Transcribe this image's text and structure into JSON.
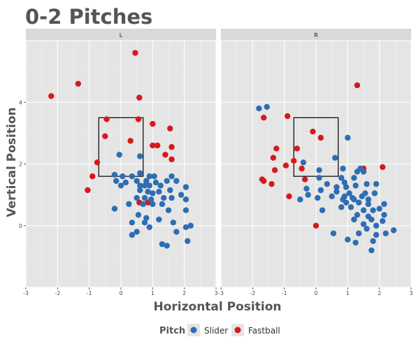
{
  "title": "0-2 Pitches",
  "chart_data": {
    "type": "scatter",
    "title": "0-2 Pitches",
    "xlabel": "Horizontal Position",
    "ylabel": "Vertical Position",
    "xlim": [
      -3,
      3
    ],
    "ylim": [
      -2,
      6
    ],
    "x_ticks": [
      "-3",
      "-2",
      "-1",
      "0",
      "1",
      "2",
      "3"
    ],
    "y_ticks": [
      "0",
      "2",
      "4"
    ],
    "grid": true,
    "legend": {
      "title": "Pitch",
      "position": "bottom",
      "entries": [
        "Slider",
        "Fastball"
      ]
    },
    "strike_zone": {
      "x": [
        -0.7,
        0.7
      ],
      "y": [
        1.6,
        3.5
      ]
    },
    "colors": {
      "Slider": "#2e6db4",
      "Fastball": "#d7191c",
      "panel": "#e5e5e5",
      "strip": "#d9d9d9",
      "grid": "#ffffff"
    },
    "panels": [
      {
        "label": "L",
        "series": [
          {
            "name": "Fastball",
            "points": [
              [
                -2.2,
                4.2
              ],
              [
                -1.35,
                4.6
              ],
              [
                0.45,
                5.6
              ],
              [
                0.58,
                4.15
              ],
              [
                -0.45,
                3.45
              ],
              [
                0.55,
                3.45
              ],
              [
                -0.5,
                2.9
              ],
              [
                0.3,
                2.75
              ],
              [
                1.0,
                3.3
              ],
              [
                1.55,
                3.15
              ],
              [
                1.0,
                2.6
              ],
              [
                1.15,
                2.6
              ],
              [
                1.6,
                2.55
              ],
              [
                1.4,
                2.3
              ],
              [
                1.6,
                2.15
              ],
              [
                -0.75,
                2.05
              ],
              [
                -0.9,
                1.6
              ],
              [
                -1.05,
                1.15
              ],
              [
                0.58,
                0.75
              ],
              [
                0.85,
                0.75
              ]
            ]
          },
          {
            "name": "Slider",
            "points": [
              [
                -0.05,
                2.3
              ],
              [
                0.6,
                2.25
              ],
              [
                -0.2,
                1.65
              ],
              [
                0.05,
                1.6
              ],
              [
                0.35,
                1.6
              ],
              [
                0.6,
                1.7
              ],
              [
                0.9,
                1.6
              ],
              [
                1.05,
                1.6
              ],
              [
                1.6,
                1.6
              ],
              [
                -0.15,
                1.45
              ],
              [
                0.15,
                1.4
              ],
              [
                0.5,
                1.45
              ],
              [
                0.8,
                1.45
              ],
              [
                1.1,
                1.4
              ],
              [
                1.45,
                1.45
              ],
              [
                1.75,
                1.45
              ],
              [
                0.0,
                1.3
              ],
              [
                0.6,
                1.3
              ],
              [
                0.75,
                1.3
              ],
              [
                0.9,
                1.3
              ],
              [
                1.25,
                1.3
              ],
              [
                2.05,
                1.25
              ],
              [
                0.6,
                1.15
              ],
              [
                0.85,
                1.1
              ],
              [
                1.0,
                1.05
              ],
              [
                1.2,
                1.1
              ],
              [
                1.55,
                1.15
              ],
              [
                1.9,
                1.0
              ],
              [
                0.5,
                0.9
              ],
              [
                0.75,
                0.9
              ],
              [
                0.95,
                0.85
              ],
              [
                1.35,
                0.9
              ],
              [
                1.6,
                0.9
              ],
              [
                2.05,
                0.85
              ],
              [
                0.25,
                0.7
              ],
              [
                0.7,
                0.7
              ],
              [
                1.0,
                0.7
              ],
              [
                1.3,
                0.7
              ],
              [
                -0.2,
                0.55
              ],
              [
                2.05,
                0.5
              ],
              [
                1.5,
                0.5
              ],
              [
                0.55,
                0.35
              ],
              [
                0.8,
                0.25
              ],
              [
                1.2,
                0.2
              ],
              [
                0.35,
                0.1
              ],
              [
                0.75,
                0.1
              ],
              [
                1.65,
                0.1
              ],
              [
                0.9,
                -0.05
              ],
              [
                2.05,
                -0.05
              ],
              [
                2.2,
                0.0
              ],
              [
                0.5,
                -0.2
              ],
              [
                1.75,
                -0.2
              ],
              [
                0.35,
                -0.3
              ],
              [
                1.3,
                -0.6
              ],
              [
                1.45,
                -0.65
              ],
              [
                2.1,
                -0.5
              ]
            ]
          }
        ]
      },
      {
        "label": "R",
        "series": [
          {
            "name": "Fastball",
            "points": [
              [
                1.3,
                4.55
              ],
              [
                -1.65,
                3.5
              ],
              [
                -0.9,
                3.55
              ],
              [
                -0.1,
                3.05
              ],
              [
                0.15,
                2.85
              ],
              [
                -0.6,
                2.5
              ],
              [
                -1.25,
                2.5
              ],
              [
                -1.35,
                2.2
              ],
              [
                -0.7,
                2.1
              ],
              [
                -0.95,
                1.95
              ],
              [
                -1.3,
                1.8
              ],
              [
                -0.45,
                1.85
              ],
              [
                1.5,
                1.85
              ],
              [
                2.1,
                1.9
              ],
              [
                -1.7,
                1.5
              ],
              [
                -1.65,
                1.45
              ],
              [
                -1.4,
                1.35
              ],
              [
                -0.85,
                0.95
              ],
              [
                -0.35,
                1.5
              ],
              [
                0.0,
                0.0
              ]
            ]
          },
          {
            "name": "Slider",
            "points": [
              [
                -1.8,
                3.8
              ],
              [
                -1.55,
                3.85
              ],
              [
                1.0,
                2.85
              ],
              [
                0.6,
                2.2
              ],
              [
                -0.4,
                2.05
              ],
              [
                0.1,
                1.8
              ],
              [
                0.85,
                1.85
              ],
              [
                1.3,
                1.75
              ],
              [
                1.4,
                1.85
              ],
              [
                1.5,
                1.75
              ],
              [
                0.1,
                1.55
              ],
              [
                0.8,
                1.55
              ],
              [
                1.2,
                1.55
              ],
              [
                0.35,
                1.35
              ],
              [
                0.9,
                1.4
              ],
              [
                1.6,
                1.35
              ],
              [
                1.9,
                1.35
              ],
              [
                0.65,
                1.25
              ],
              [
                0.95,
                1.25
              ],
              [
                1.25,
                1.3
              ],
              [
                -0.3,
                1.2
              ],
              [
                0.15,
                1.15
              ],
              [
                0.65,
                1.1
              ],
              [
                1.05,
                1.05
              ],
              [
                1.55,
                1.05
              ],
              [
                1.85,
                1.05
              ],
              [
                -0.25,
                1.0
              ],
              [
                0.05,
                0.9
              ],
              [
                0.5,
                0.95
              ],
              [
                0.9,
                0.95
              ],
              [
                1.15,
                0.9
              ],
              [
                1.45,
                0.95
              ],
              [
                -0.5,
                0.85
              ],
              [
                0.85,
                0.85
              ],
              [
                1.2,
                0.85
              ],
              [
                1.65,
                0.85
              ],
              [
                0.95,
                0.75
              ],
              [
                1.35,
                0.75
              ],
              [
                1.65,
                0.7
              ],
              [
                2.15,
                0.7
              ],
              [
                0.8,
                0.6
              ],
              [
                1.1,
                0.6
              ],
              [
                0.2,
                0.5
              ],
              [
                1.5,
                0.5
              ],
              [
                1.8,
                0.5
              ],
              [
                2.0,
                0.55
              ],
              [
                1.3,
                0.35
              ],
              [
                1.65,
                0.3
              ],
              [
                2.15,
                0.35
              ],
              [
                1.2,
                0.2
              ],
              [
                1.75,
                0.2
              ],
              [
                2.1,
                0.15
              ],
              [
                1.5,
                0.05
              ],
              [
                1.9,
                0.0
              ],
              [
                1.6,
                -0.1
              ],
              [
                2.45,
                -0.15
              ],
              [
                2.2,
                -0.25
              ],
              [
                0.55,
                -0.25
              ],
              [
                1.35,
                -0.25
              ],
              [
                1.9,
                -0.3
              ],
              [
                1.0,
                -0.45
              ],
              [
                1.25,
                -0.55
              ],
              [
                1.8,
                -0.5
              ],
              [
                1.75,
                -0.8
              ]
            ]
          }
        ]
      }
    ]
  }
}
